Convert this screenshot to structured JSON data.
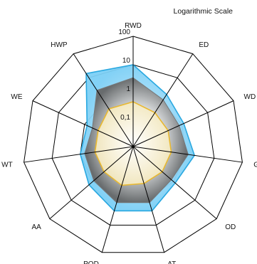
{
  "chart_data": {
    "type": "radar",
    "subtitle": "Logarithmic Scale",
    "scale": "log",
    "range": [
      0.1,
      100
    ],
    "ticks": [
      {
        "value": 0.1,
        "label": "0,1"
      },
      {
        "value": 1,
        "label": "1"
      },
      {
        "value": 10,
        "label": "10"
      },
      {
        "value": 100,
        "label": "100"
      }
    ],
    "axes": [
      "RWD",
      "ED",
      "WD",
      "GW",
      "OD",
      "AT",
      "POD",
      "AA",
      "WT",
      "WE",
      "HWP"
    ],
    "series": [
      {
        "name": "",
        "color": "#29a8e0",
        "values": [
          10,
          2,
          1.2,
          2,
          1.2,
          3,
          3,
          1.5,
          1,
          0.8,
          15
        ]
      },
      {
        "name": "",
        "color": "#777777",
        "values": [
          3.5,
          1.2,
          0.8,
          1.2,
          0.8,
          1.5,
          1.5,
          0.9,
          0.7,
          0.5,
          3
        ]
      },
      {
        "name": "",
        "color": "#e8b830",
        "values": [
          0.5,
          0.35,
          0.3,
          0.3,
          0.3,
          0.3,
          0.35,
          0.3,
          0.3,
          0.3,
          0.5
        ]
      }
    ],
    "grid": true
  }
}
